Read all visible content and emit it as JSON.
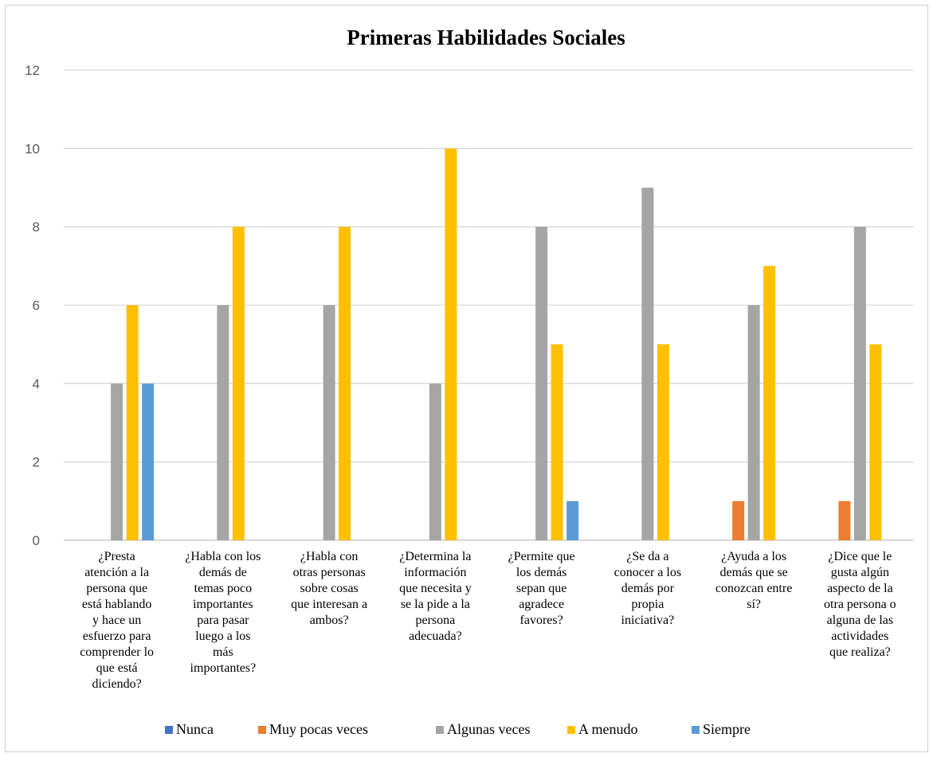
{
  "chart_data": {
    "type": "bar",
    "title": "Primeras Habilidades Sociales",
    "ylim": [
      0,
      12
    ],
    "yticks": [
      0,
      2,
      4,
      6,
      8,
      10,
      12
    ],
    "grid": true,
    "legend_position": "bottom",
    "categories": [
      [
        "¿Presta",
        "atención a la",
        "persona que",
        "está hablando",
        "y hace un",
        "esfuerzo para",
        "comprender lo",
        "que está",
        "diciendo?"
      ],
      [
        "¿Habla con los",
        "demás de",
        "temas poco",
        "importantes",
        "para pasar",
        "luego a los",
        "más",
        "importantes?"
      ],
      [
        "¿Habla con",
        "otras personas",
        "sobre cosas",
        "que interesan a",
        "ambos?"
      ],
      [
        "¿Determina la",
        "información",
        "que necesita y",
        "se la pide a la",
        "persona",
        "adecuada?"
      ],
      [
        "¿Permite que",
        "los demás",
        "sepan que",
        "agradece",
        "favores?"
      ],
      [
        "¿Se da a",
        "conocer a los",
        "demás por",
        "propia",
        "iniciativa?"
      ],
      [
        "¿Ayuda a los",
        "demás que se",
        "conozcan entre",
        "sí?"
      ],
      [
        "¿Dice que le",
        "gusta algún",
        "aspecto de la",
        "otra persona o",
        "alguna de las",
        "actividades",
        "que realiza?"
      ]
    ],
    "series": [
      {
        "name": "Nunca",
        "color": "#4472C4",
        "values": [
          0,
          0,
          0,
          0,
          0,
          0,
          0,
          0
        ]
      },
      {
        "name": "Muy pocas veces",
        "color": "#ED7D31",
        "values": [
          0,
          0,
          0,
          0,
          0,
          0,
          1,
          1
        ]
      },
      {
        "name": "Algunas veces",
        "color": "#A5A5A5",
        "values": [
          4,
          6,
          6,
          4,
          8,
          9,
          6,
          8
        ]
      },
      {
        "name": "A menudo",
        "color": "#FFC000",
        "values": [
          6,
          8,
          8,
          10,
          5,
          5,
          7,
          5
        ]
      },
      {
        "name": "Siempre",
        "color": "#5B9BD5",
        "values": [
          4,
          0,
          0,
          0,
          1,
          0,
          0,
          0
        ]
      }
    ]
  }
}
